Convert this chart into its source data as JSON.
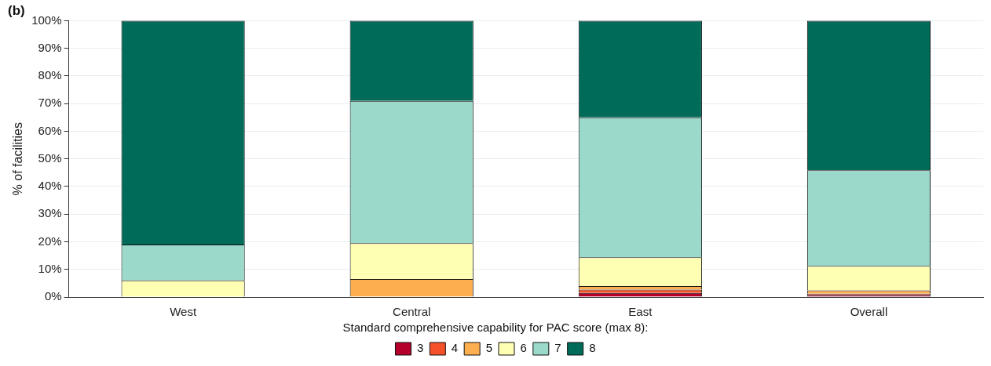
{
  "chart_data": {
    "type": "bar",
    "title": "(b)",
    "ylabel": "% of facilities",
    "legend_title": "Standard comprehensive capability for PAC score (max 8):",
    "categories": [
      "West",
      "Central",
      "East",
      "Overall"
    ],
    "stacked": true,
    "series": [
      {
        "name": "3",
        "color": "#b5002c",
        "values": [
          0,
          0,
          1.5,
          0.8
        ]
      },
      {
        "name": "4",
        "color": "#f4502a",
        "values": [
          0,
          0,
          1.2,
          0.4
        ]
      },
      {
        "name": "5",
        "color": "#fdae4e",
        "values": [
          0,
          6.5,
          1.3,
          1.2
        ]
      },
      {
        "name": "6",
        "color": "#ffffb3",
        "values": [
          6,
          13,
          10.4,
          8.9
        ]
      },
      {
        "name": "7",
        "color": "#9bd9cb",
        "values": [
          13,
          51.5,
          50.6,
          34.6
        ]
      },
      {
        "name": "8",
        "color": "#006b59",
        "values": [
          81,
          29,
          35,
          54.1
        ]
      }
    ],
    "ylim": [
      0,
      100
    ],
    "yticks": [
      {
        "value": 0,
        "label": "0%"
      },
      {
        "value": 10,
        "label": "10%"
      },
      {
        "value": 20,
        "label": "20%"
      },
      {
        "value": 30,
        "label": "30%"
      },
      {
        "value": 40,
        "label": "40%"
      },
      {
        "value": 50,
        "label": "50%"
      },
      {
        "value": 60,
        "label": "60%"
      },
      {
        "value": 70,
        "label": "70%"
      },
      {
        "value": 80,
        "label": "80%"
      },
      {
        "value": 90,
        "label": "90%"
      },
      {
        "value": 100,
        "label": "100%"
      }
    ],
    "grid": "y",
    "legend": "bottom"
  }
}
